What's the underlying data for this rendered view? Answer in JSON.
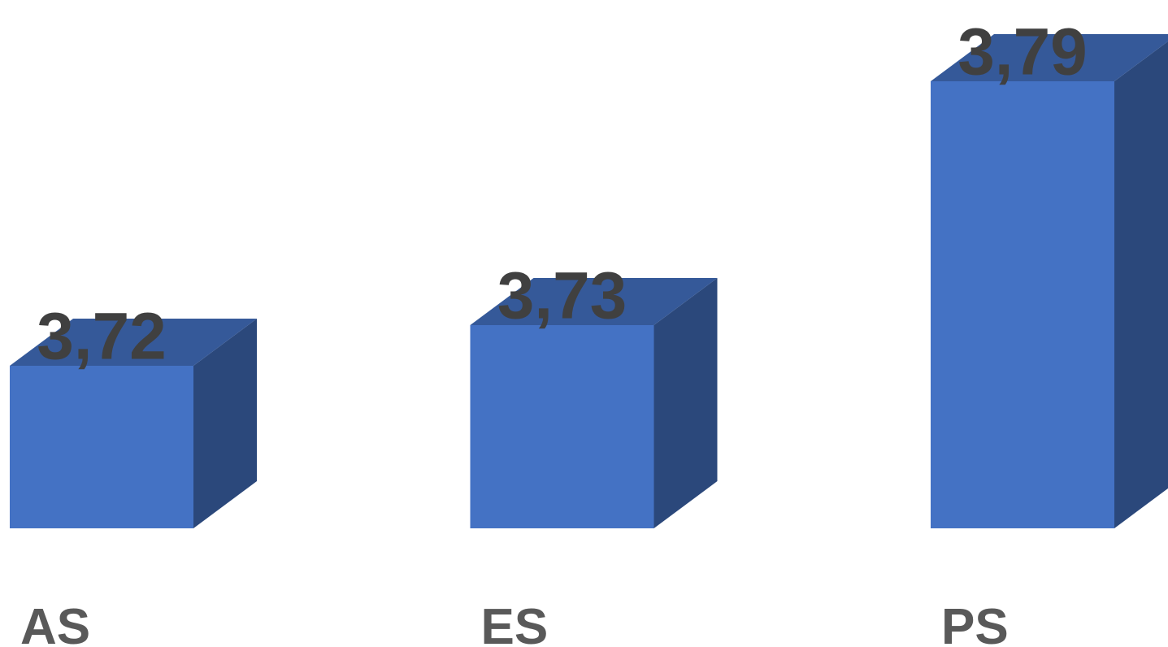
{
  "chart_data": {
    "type": "bar3d",
    "categories": [
      "AS",
      "ES",
      "PS"
    ],
    "values": [
      3.72,
      3.73,
      3.79
    ],
    "value_labels": [
      "3,72",
      "3,73",
      "3,79"
    ],
    "color": "#4472c4",
    "ylim": [
      3.68,
      3.81
    ]
  }
}
